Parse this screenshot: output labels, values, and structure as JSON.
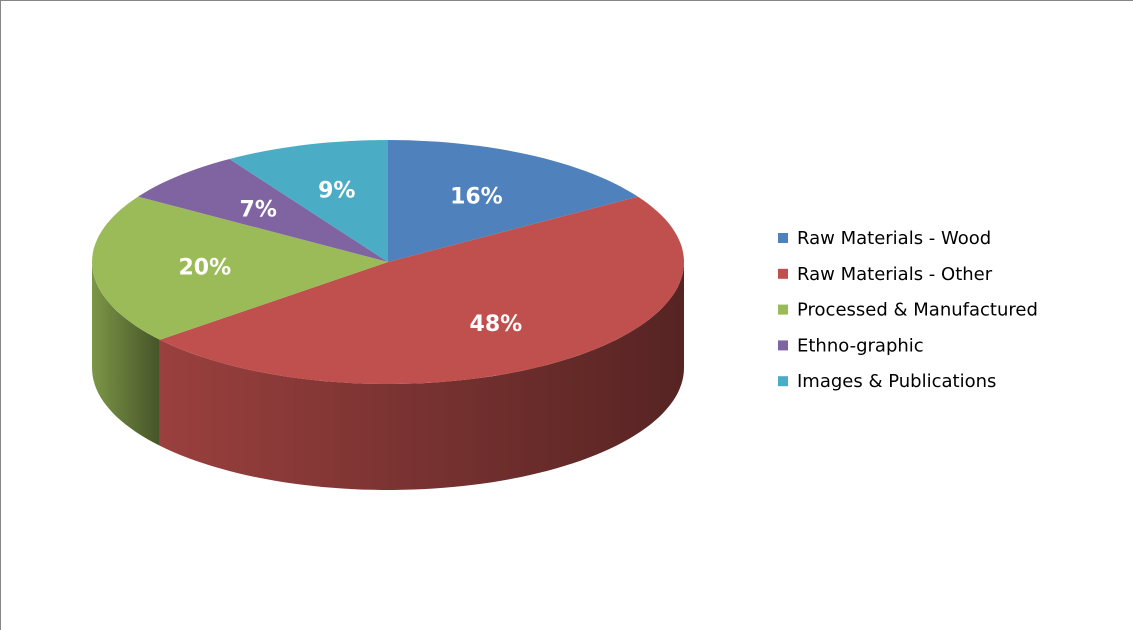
{
  "chart_data": {
    "type": "pie",
    "categories": [
      "Raw Materials - Wood",
      "Raw Materials - Other",
      "Processed & Manufactured",
      "Ethno-graphic",
      "Images & Publications"
    ],
    "values": [
      16,
      48,
      20,
      7,
      9
    ],
    "value_labels": [
      "16%",
      "48%",
      "20%",
      "7%",
      "9%"
    ],
    "colors": [
      "#4f81bd",
      "#c0504d",
      "#9bbb59",
      "#8064a2",
      "#4bacc6"
    ],
    "legend": "right"
  }
}
